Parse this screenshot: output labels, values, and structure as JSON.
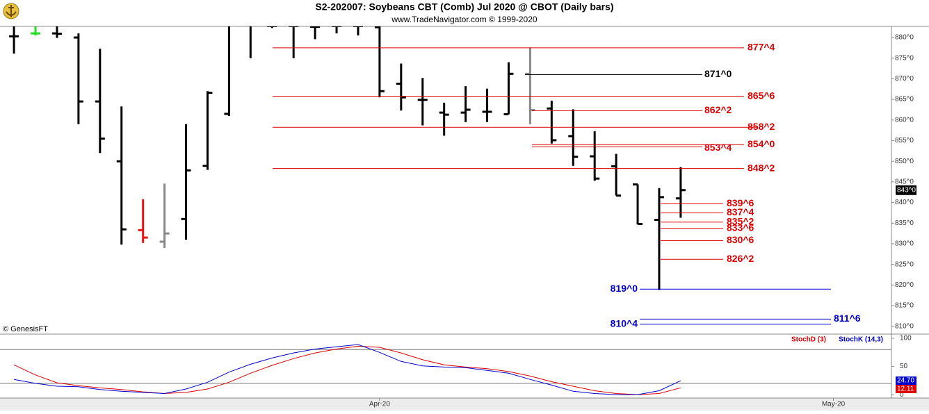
{
  "chart_data": [
    {
      "type": "ohlc",
      "title": "S2-202007:  Soybeans CBT (Comb) Jul 2020 @ CBOT  (Daily bars)",
      "subtitle": "www.TradeNavigator.com © 1999-2020",
      "credit": "© GenesisFT",
      "xlim": [
        -0.65,
        40.8
      ],
      "xticks": [
        {
          "value": 17,
          "label": "Apr-20"
        },
        {
          "value": 38.1,
          "label": "May-20"
        }
      ],
      "ylim": [
        808.1,
        882.7
      ],
      "yticks": [
        {
          "value": 810,
          "label": "810^0"
        },
        {
          "value": 815,
          "label": "815^0"
        },
        {
          "value": 820,
          "label": "820^0"
        },
        {
          "value": 825,
          "label": "825^0"
        },
        {
          "value": 830,
          "label": "830^0"
        },
        {
          "value": 835,
          "label": "835^0"
        },
        {
          "value": 840,
          "label": "840^0"
        },
        {
          "value": 845,
          "label": "845^0"
        },
        {
          "value": 850,
          "label": "850^0"
        },
        {
          "value": 855,
          "label": "855^0"
        },
        {
          "value": 860,
          "label": "860^0"
        },
        {
          "value": 865,
          "label": "865^0"
        },
        {
          "value": 870,
          "label": "870^0"
        },
        {
          "value": 875,
          "label": "875^0"
        },
        {
          "value": 880,
          "label": "880^0"
        }
      ],
      "open": [
        880.3,
        881,
        881,
        880,
        864.5,
        850,
        833.3,
        830.5,
        836,
        848.9,
        861.5,
        883,
        882.8,
        882.8,
        882.6,
        882.8,
        882.8,
        882.5,
        868.8,
        864.9,
        861.8,
        861.8,
        862,
        861.4,
        871.2,
        862.8,
        856.1,
        851.2,
        848.8,
        844.4,
        835.8,
        841
      ],
      "high": [
        883,
        883,
        883,
        881,
        877.3,
        863.3,
        840.8,
        844.6,
        859,
        867,
        883,
        883,
        883,
        883,
        883,
        883,
        883,
        883,
        873.7,
        870.2,
        864.2,
        868.2,
        867.6,
        874,
        877.6,
        864.7,
        862.6,
        857.3,
        851.8,
        844.4,
        843.5,
        848.6
      ],
      "low": [
        876.1,
        880.5,
        879.9,
        859,
        852,
        829.8,
        830.2,
        829,
        831,
        847.9,
        861,
        875,
        882.3,
        875,
        879.6,
        881,
        880.5,
        865.5,
        862.3,
        858.7,
        856.2,
        859.5,
        859.5,
        861.4,
        859,
        854.3,
        848.9,
        845.3,
        841.7,
        834.7,
        818.8,
        836.3
      ],
      "close": [
        880.3,
        881,
        880.9,
        864.5,
        855.5,
        833.5,
        831.5,
        832.5,
        847.8,
        866.6,
        883,
        883,
        882.8,
        882.8,
        882.6,
        882.8,
        882.8,
        867,
        865.5,
        864.9,
        861.3,
        862.5,
        862,
        871.2,
        862.4,
        855.1,
        851.1,
        845.8,
        841.7,
        834.8,
        841.3,
        843
      ],
      "colors": [
        "#000000",
        "#22dd22",
        "#000000",
        "#000000",
        "#000000",
        "#000000",
        "#ee1111",
        "#888888",
        "#000000",
        "#000000",
        "#000000",
        "#000000",
        "#000000",
        "#000000",
        "#000000",
        "#000000",
        "#000000",
        "#000000",
        "#000000",
        "#000000",
        "#000000",
        "#000000",
        "#000000",
        "#000000",
        "#888888",
        "#000000",
        "#000000",
        "#000000",
        "#000000",
        "#000000",
        "#000000",
        "#000000"
      ],
      "last_label": "843^0",
      "levels": [
        {
          "label": "877^4",
          "value": 877.5,
          "color": "#dd0000"
        },
        {
          "label": "871^0",
          "value": 871,
          "color": "#000000"
        },
        {
          "label": "865^6",
          "value": 865.75,
          "color": "#dd0000"
        },
        {
          "label": "862^2",
          "value": 862.25,
          "color": "#dd0000"
        },
        {
          "label": "858^2",
          "value": 858.25,
          "color": "#dd0000"
        },
        {
          "label": "854^0",
          "value": 854,
          "color": "#dd0000"
        },
        {
          "label": "853^4",
          "value": 853.5,
          "color": "#dd0000"
        },
        {
          "label": "848^2",
          "value": 848.25,
          "color": "#dd0000"
        },
        {
          "label": "839^6",
          "value": 839.75,
          "color": "#dd0000"
        },
        {
          "label": "837^4",
          "value": 837.5,
          "color": "#dd0000"
        },
        {
          "label": "835^2",
          "value": 835.25,
          "color": "#dd0000"
        },
        {
          "label": "833^6",
          "value": 833.75,
          "color": "#dd0000"
        },
        {
          "label": "830^6",
          "value": 830.75,
          "color": "#dd0000"
        },
        {
          "label": "826^2",
          "value": 826.25,
          "color": "#dd0000"
        },
        {
          "label": "819^0",
          "value": 819,
          "color": "#0000cc"
        },
        {
          "label": "811^6",
          "value": 811.75,
          "color": "#0000cc"
        },
        {
          "label": "810^4",
          "value": 810.5,
          "color": "#0000cc"
        }
      ]
    },
    {
      "type": "line",
      "xlim": [
        -0.65,
        40.8
      ],
      "ylim": [
        -6,
        105
      ],
      "yticks": [
        0,
        50,
        100
      ],
      "levels": [
        80,
        20
      ],
      "series": [
        {
          "name": "StochD (3)",
          "color": "#dd0000",
          "last_label": "12.11",
          "values": [
            53,
            35,
            21,
            16,
            12,
            9,
            5,
            2,
            4,
            10,
            22,
            38,
            52,
            64,
            74,
            81,
            86,
            84,
            74,
            62,
            53,
            49,
            46,
            41,
            33,
            23,
            15,
            7,
            2,
            0,
            2,
            12.11
          ]
        },
        {
          "name": "StochK (14,3)",
          "color": "#0000cc",
          "last_label": "24.70",
          "values": [
            27,
            20,
            15,
            14,
            9,
            6,
            4,
            2,
            10,
            22,
            40,
            54,
            65,
            74,
            81,
            85,
            89,
            75,
            59,
            51,
            49,
            48,
            43,
            38,
            27,
            17,
            6,
            2,
            0,
            0,
            7,
            24.7
          ]
        }
      ]
    }
  ]
}
